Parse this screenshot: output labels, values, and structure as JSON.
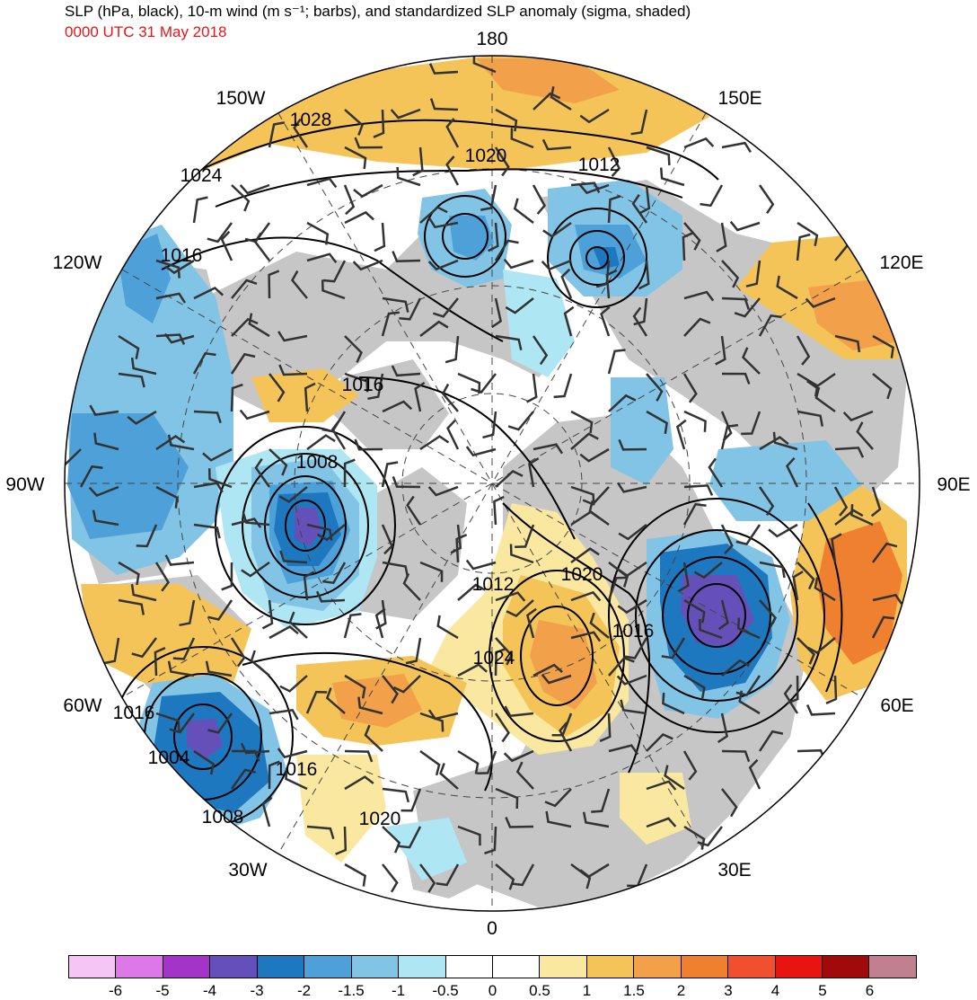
{
  "header": {
    "title": "SLP (hPa, black), 10-m wind (m s⁻¹; barbs), and standardized SLP anomaly (sigma, shaded)",
    "valid_time": "0000 UTC 31 May 2018"
  },
  "map": {
    "projection": "north-polar-stereographic",
    "longitude_labels": {
      "lon_0": "0",
      "lon_30e": "30E",
      "lon_60e": "60E",
      "lon_90e": "90E",
      "lon_120e": "120E",
      "lon_150e": "150E",
      "lon_180": "180",
      "lon_150w": "150W",
      "lon_120w": "120W",
      "lon_90w": "90W",
      "lon_60w": "60W",
      "lon_30w": "30W"
    },
    "contour_labels": [
      "1028",
      "1024",
      "1020",
      "1012",
      "1016",
      "1016",
      "1008",
      "1012",
      "1020",
      "1016",
      "1024",
      "1016",
      "1004",
      "1016",
      "1008",
      "1020"
    ],
    "colors": {
      "land": "#c6c6c6",
      "ocean": "#ffffff",
      "contour": "#000000",
      "barb": "#333333",
      "title_time": "#e8141b"
    }
  },
  "colorbar": {
    "swatch_colors": [
      "#f5c6f5",
      "#dc78e8",
      "#a235c8",
      "#6450b8",
      "#1e78c0",
      "#4ea0d8",
      "#82c4e6",
      "#aee6f4",
      "#ffffff",
      "#ffffff",
      "#fbe8a0",
      "#f4c458",
      "#f2a04a",
      "#ef8030",
      "#f05030",
      "#e81410",
      "#a00a0a",
      "#c08090"
    ],
    "tick_labels": [
      "-6",
      "-5",
      "-4",
      "-3",
      "-2",
      "-1.5",
      "-1",
      "-0.5",
      "0",
      "0.5",
      "1",
      "1.5",
      "2",
      "3",
      "4",
      "5",
      "6"
    ]
  }
}
